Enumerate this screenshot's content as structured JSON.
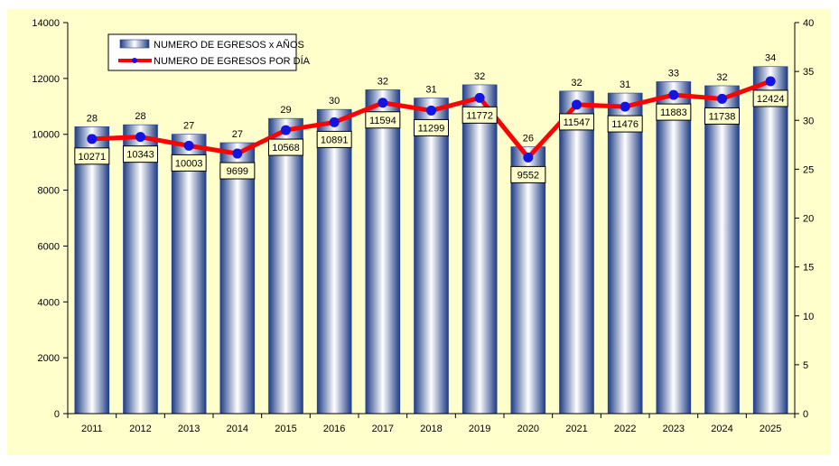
{
  "chart_data": {
    "type": "bar",
    "categories": [
      "2011",
      "2012",
      "2013",
      "2014",
      "2015",
      "2016",
      "2017",
      "2018",
      "2019",
      "2020",
      "2021",
      "2022",
      "2023",
      "2024",
      "2025"
    ],
    "series": [
      {
        "name": "NUMERO DE EGRESOS x AÑOS",
        "type": "bar",
        "axis": "left",
        "values": [
          10271,
          10343,
          10003,
          9699,
          10568,
          10891,
          11594,
          11299,
          11772,
          9552,
          11547,
          11476,
          11883,
          11738,
          12424
        ]
      },
      {
        "name": "NUMERO DE EGRESOS POR DÍA",
        "type": "line",
        "axis": "right",
        "values": [
          28,
          28,
          27,
          27,
          29,
          30,
          32,
          31,
          32,
          26,
          32,
          31,
          33,
          32,
          34
        ],
        "plotted_values": [
          28.1,
          28.3,
          27.4,
          26.6,
          29.0,
          29.8,
          31.8,
          31.0,
          32.3,
          26.2,
          31.6,
          31.4,
          32.6,
          32.2,
          34.0
        ]
      }
    ],
    "y_left": {
      "min": 0,
      "max": 14000,
      "ticks": [
        0,
        2000,
        4000,
        6000,
        8000,
        10000,
        12000,
        14000
      ]
    },
    "y_right": {
      "min": 0,
      "max": 40,
      "ticks": [
        0,
        5,
        10,
        15,
        20,
        25,
        30,
        35,
        40
      ]
    },
    "legend": "top-left",
    "grid": false,
    "colors": {
      "background": "#ffffcc",
      "bar_dark": "#1f3d86",
      "bar_light": "#ffffff",
      "line": "#ff0000",
      "marker": "#1414e0",
      "label_box": "#ffffcc"
    }
  }
}
